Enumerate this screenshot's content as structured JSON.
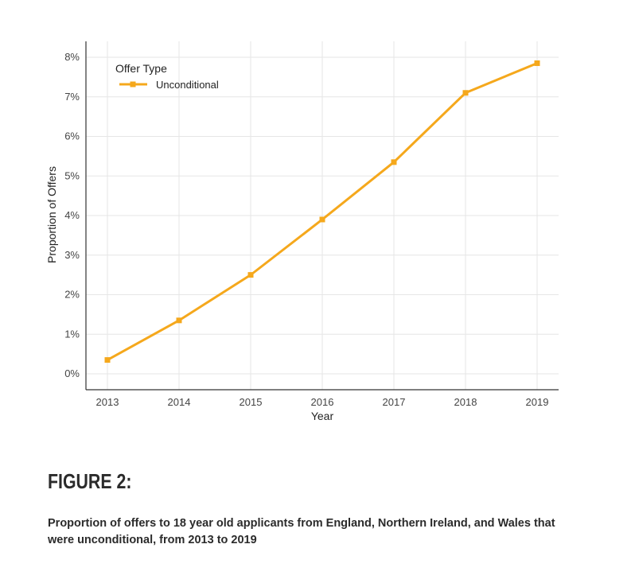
{
  "figure": {
    "heading": "FIGURE 2:",
    "caption": "Proportion of offers to 18 year old applicants from England, Northern Ireland, and Wales that were unconditional, from 2013 to 2019"
  },
  "chart_data": {
    "type": "line",
    "x": [
      2013,
      2014,
      2015,
      2016,
      2017,
      2018,
      2019
    ],
    "x_tick_labels": [
      "2013",
      "2014",
      "2015",
      "2016",
      "2017",
      "2018",
      "2019"
    ],
    "series": [
      {
        "name": "Unconditional",
        "values": [
          0.35,
          1.35,
          2.5,
          3.9,
          5.35,
          7.1,
          7.85
        ],
        "color": "#f5a81c"
      }
    ],
    "xlabel": "Year",
    "ylabel": "Proportion of Offers",
    "ylim": [
      0,
      8
    ],
    "y_ticks": [
      0,
      1,
      2,
      3,
      4,
      5,
      6,
      7,
      8
    ],
    "y_tick_labels": [
      "0%",
      "1%",
      "2%",
      "3%",
      "4%",
      "5%",
      "6%",
      "7%",
      "8%"
    ],
    "legend": {
      "title": "Offer Type",
      "position": "top-left"
    },
    "grid": true
  }
}
